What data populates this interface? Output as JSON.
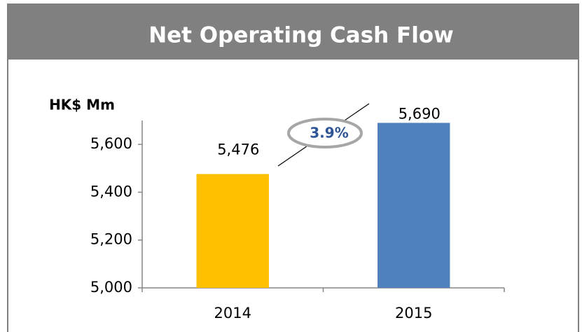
{
  "chart_data": {
    "type": "bar",
    "title": "Net Operating Cash Flow",
    "y_label": "HK$ Mm",
    "categories": [
      "2014",
      "2015"
    ],
    "values": [
      5476,
      5690
    ],
    "value_labels": [
      "5,476",
      "5,690"
    ],
    "colors": [
      "#ffc000",
      "#4f81bd"
    ],
    "ylim": [
      5000,
      5700
    ],
    "yticks": [
      {
        "value": 5000,
        "label": "5,000"
      },
      {
        "value": 5200,
        "label": "5,200"
      },
      {
        "value": 5400,
        "label": "5,400"
      },
      {
        "value": 5600,
        "label": "5,600"
      }
    ],
    "annotation": "3.9%"
  }
}
